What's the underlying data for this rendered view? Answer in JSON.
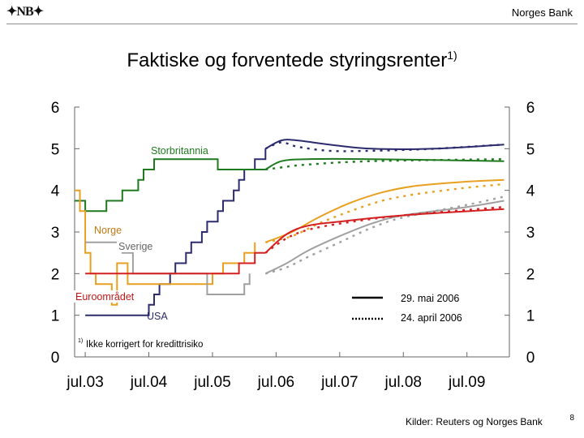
{
  "header": {
    "logo_text": "NB",
    "organization": "Norges Bank"
  },
  "slide": {
    "title": "Faktiske og forventede styringsrenter",
    "title_superscript": "1)",
    "source": "Kilder: Reuters og Norges Bank",
    "page_number": "8"
  },
  "chart_data": {
    "type": "line",
    "title": "Faktiske og forventede styringsrenter",
    "x_tick_labels": [
      "jul.03",
      "jul.04",
      "jul.05",
      "jul.06",
      "jul.07",
      "jul.08",
      "jul.09"
    ],
    "x_range": [
      "2003-05",
      "2010-03"
    ],
    "y_ticks_left": [
      "0",
      "1",
      "2",
      "3",
      "4",
      "5",
      "6"
    ],
    "y_ticks_right": [
      "0",
      "1",
      "2",
      "3",
      "4",
      "5",
      "6"
    ],
    "ylim": [
      0,
      6
    ],
    "grid": false,
    "legend": {
      "placement": "bottom-right",
      "entries": [
        {
          "label": "29. mai 2006",
          "style": "solid"
        },
        {
          "label": "24. april 2006",
          "style": "dotted"
        }
      ]
    },
    "footnote_marker": "1)",
    "footnote": "Ikke korrigert for kredittrisiko",
    "series": [
      {
        "name": "USA",
        "color": "#2b2b6e",
        "actual": [
          [
            "2003-07",
            1.0
          ],
          [
            "2004-06",
            1.0
          ],
          [
            "2004-07",
            1.25
          ],
          [
            "2004-08",
            1.5
          ],
          [
            "2004-09",
            1.75
          ],
          [
            "2004-11",
            2.0
          ],
          [
            "2004-12",
            2.25
          ],
          [
            "2005-02",
            2.5
          ],
          [
            "2005-03",
            2.75
          ],
          [
            "2005-05",
            3.0
          ],
          [
            "2005-06",
            3.25
          ],
          [
            "2005-08",
            3.5
          ],
          [
            "2005-09",
            3.75
          ],
          [
            "2005-11",
            4.0
          ],
          [
            "2005-12",
            4.25
          ],
          [
            "2006-01",
            4.5
          ],
          [
            "2006-03",
            4.75
          ],
          [
            "2006-05",
            5.0
          ]
        ],
        "forecast_solid": [
          [
            "2006-05",
            5.0
          ],
          [
            "2006-08",
            5.2
          ],
          [
            "2006-11",
            5.2
          ],
          [
            "2007-05",
            5.1
          ],
          [
            "2008-01",
            5.0
          ],
          [
            "2009-01",
            5.0
          ],
          [
            "2010-02",
            5.1
          ]
        ],
        "forecast_dotted": [
          [
            "2006-05",
            5.0
          ],
          [
            "2006-08",
            5.15
          ],
          [
            "2006-11",
            5.05
          ],
          [
            "2007-05",
            4.95
          ],
          [
            "2008-01",
            4.95
          ],
          [
            "2009-01",
            5.0
          ],
          [
            "2010-02",
            5.1
          ]
        ]
      },
      {
        "name": "Storbritannia",
        "color": "#1f7a1f",
        "actual": [
          [
            "2003-05",
            3.75
          ],
          [
            "2003-07",
            3.5
          ],
          [
            "2003-11",
            3.75
          ],
          [
            "2004-02",
            4.0
          ],
          [
            "2004-05",
            4.25
          ],
          [
            "2004-06",
            4.5
          ],
          [
            "2004-08",
            4.75
          ],
          [
            "2005-08",
            4.5
          ],
          [
            "2006-05",
            4.5
          ]
        ],
        "forecast_solid": [
          [
            "2006-05",
            4.5
          ],
          [
            "2006-08",
            4.7
          ],
          [
            "2007-01",
            4.75
          ],
          [
            "2008-01",
            4.75
          ],
          [
            "2010-02",
            4.7
          ]
        ],
        "forecast_dotted": [
          [
            "2006-05",
            4.5
          ],
          [
            "2006-08",
            4.55
          ],
          [
            "2007-01",
            4.62
          ],
          [
            "2008-01",
            4.7
          ],
          [
            "2010-02",
            4.75
          ]
        ]
      },
      {
        "name": "Norge",
        "color": "#e8a020",
        "actual": [
          [
            "2003-05",
            4.0
          ],
          [
            "2003-06",
            3.5
          ],
          [
            "2003-07",
            2.5
          ],
          [
            "2003-08",
            2.0
          ],
          [
            "2003-09",
            1.75
          ],
          [
            "2003-12",
            1.25
          ],
          [
            "2004-01",
            2.25
          ],
          [
            "2004-03",
            1.75
          ],
          [
            "2005-07",
            2.0
          ],
          [
            "2005-09",
            2.25
          ],
          [
            "2005-11",
            2.25
          ],
          [
            "2006-01",
            2.5
          ],
          [
            "2006-03",
            2.75
          ]
        ],
        "forecast_solid": [
          [
            "2006-05",
            2.75
          ],
          [
            "2006-10",
            3.0
          ],
          [
            "2007-03",
            3.35
          ],
          [
            "2007-09",
            3.7
          ],
          [
            "2008-03",
            3.95
          ],
          [
            "2008-09",
            4.1
          ],
          [
            "2009-06",
            4.2
          ],
          [
            "2010-02",
            4.25
          ]
        ],
        "forecast_dotted": [
          [
            "2006-05",
            2.75
          ],
          [
            "2006-10",
            2.9
          ],
          [
            "2007-03",
            3.2
          ],
          [
            "2007-09",
            3.5
          ],
          [
            "2008-03",
            3.75
          ],
          [
            "2008-09",
            3.9
          ],
          [
            "2009-06",
            4.05
          ],
          [
            "2010-02",
            4.15
          ]
        ]
      },
      {
        "name": "Sverige",
        "color": "#a0a0a0",
        "actual": [
          [
            "2003-07",
            2.75
          ],
          [
            "2003-09",
            2.75
          ],
          [
            "2004-02",
            2.5
          ],
          [
            "2004-04",
            2.0
          ],
          [
            "2005-06",
            1.5
          ],
          [
            "2006-01",
            1.75
          ],
          [
            "2006-02",
            2.0
          ]
        ],
        "forecast_solid": [
          [
            "2006-05",
            2.0
          ],
          [
            "2006-09",
            2.25
          ],
          [
            "2007-01",
            2.55
          ],
          [
            "2007-07",
            2.9
          ],
          [
            "2008-01",
            3.2
          ],
          [
            "2008-07",
            3.4
          ],
          [
            "2009-07",
            3.6
          ],
          [
            "2010-02",
            3.75
          ]
        ],
        "forecast_dotted": [
          [
            "2006-05",
            2.0
          ],
          [
            "2006-09",
            2.15
          ],
          [
            "2007-01",
            2.4
          ],
          [
            "2007-07",
            2.75
          ],
          [
            "2008-01",
            3.1
          ],
          [
            "2008-07",
            3.35
          ],
          [
            "2009-07",
            3.65
          ],
          [
            "2010-02",
            3.85
          ]
        ]
      },
      {
        "name": "Euroområdet",
        "color": "#d42020",
        "actual": [
          [
            "2003-07",
            2.0
          ],
          [
            "2005-12",
            2.25
          ],
          [
            "2006-03",
            2.5
          ],
          [
            "2006-05",
            2.5
          ]
        ],
        "forecast_solid": [
          [
            "2006-05",
            2.5
          ],
          [
            "2006-09",
            2.95
          ],
          [
            "2007-01",
            3.15
          ],
          [
            "2007-07",
            3.25
          ],
          [
            "2008-07",
            3.4
          ],
          [
            "2010-02",
            3.55
          ]
        ],
        "forecast_dotted": [
          [
            "2006-05",
            2.5
          ],
          [
            "2006-09",
            2.85
          ],
          [
            "2007-01",
            3.05
          ],
          [
            "2007-07",
            3.2
          ],
          [
            "2008-07",
            3.4
          ],
          [
            "2010-02",
            3.6
          ]
        ]
      }
    ]
  }
}
